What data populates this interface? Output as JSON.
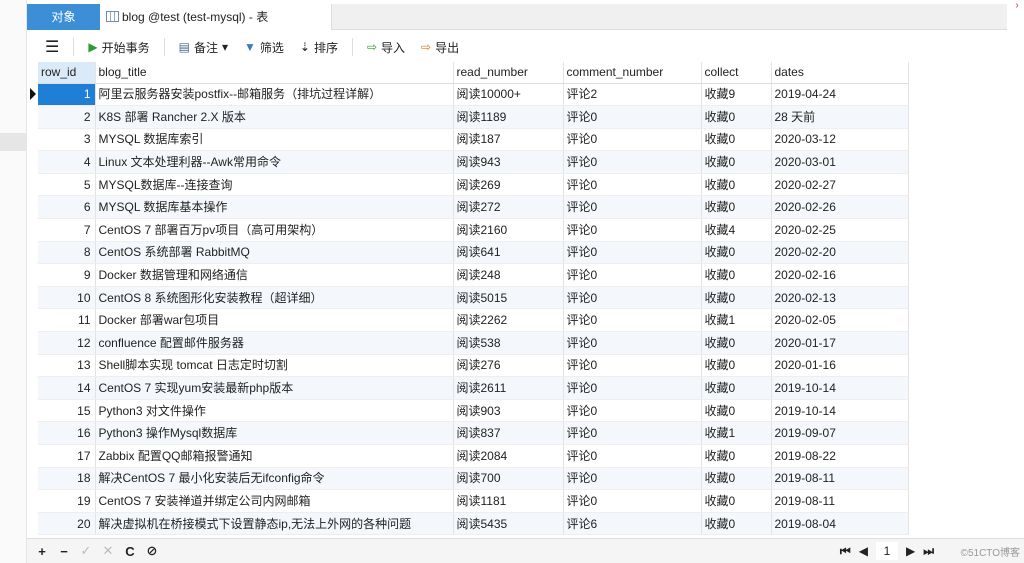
{
  "tabs": {
    "objects": "对象",
    "active": "blog @test (test-mysql) - 表"
  },
  "toolbar": {
    "begin_transaction": "开始事务",
    "notes": "备注",
    "filter": "筛选",
    "sort": "排序",
    "import": "导入",
    "export": "导出"
  },
  "columns": [
    "row_id",
    "blog_title",
    "read_number",
    "comment_number",
    "collect",
    "dates"
  ],
  "rows": [
    [
      "1",
      "阿里云服务器安装postfix--邮箱服务（排坑过程详解）",
      "阅读10000+",
      "评论2",
      "收藏9",
      "2019-04-24"
    ],
    [
      "2",
      "K8S 部署 Rancher 2.X 版本",
      "阅读1189",
      "评论0",
      "收藏0",
      "28 天前"
    ],
    [
      "3",
      "MYSQL 数据库索引",
      "阅读187",
      "评论0",
      "收藏0",
      "2020-03-12"
    ],
    [
      "4",
      "Linux 文本处理利器--Awk常用命令",
      "阅读943",
      "评论0",
      "收藏0",
      "2020-03-01"
    ],
    [
      "5",
      "MYSQL数据库--连接查询",
      "阅读269",
      "评论0",
      "收藏0",
      "2020-02-27"
    ],
    [
      "6",
      "MYSQL 数据库基本操作",
      "阅读272",
      "评论0",
      "收藏0",
      "2020-02-26"
    ],
    [
      "7",
      "CentOS 7 部署百万pv项目（高可用架构）",
      "阅读2160",
      "评论0",
      "收藏4",
      "2020-02-25"
    ],
    [
      "8",
      "CentOS 系统部署 RabbitMQ",
      "阅读641",
      "评论0",
      "收藏0",
      "2020-02-20"
    ],
    [
      "9",
      "Docker 数据管理和网络通信",
      "阅读248",
      "评论0",
      "收藏0",
      "2020-02-16"
    ],
    [
      "10",
      "CentOS 8 系统图形化安装教程（超详细）",
      "阅读5015",
      "评论0",
      "收藏0",
      "2020-02-13"
    ],
    [
      "11",
      "Docker 部署war包项目",
      "阅读2262",
      "评论0",
      "收藏1",
      "2020-02-05"
    ],
    [
      "12",
      "confluence 配置邮件服务器",
      "阅读538",
      "评论0",
      "收藏0",
      "2020-01-17"
    ],
    [
      "13",
      "Shell脚本实现 tomcat 日志定时切割",
      "阅读276",
      "评论0",
      "收藏0",
      "2020-01-16"
    ],
    [
      "14",
      "CentOS 7 实现yum安装最新php版本",
      "阅读2611",
      "评论0",
      "收藏0",
      "2019-10-14"
    ],
    [
      "15",
      "Python3 对文件操作",
      "阅读903",
      "评论0",
      "收藏0",
      "2019-10-14"
    ],
    [
      "16",
      "Python3 操作Mysql数据库",
      "阅读837",
      "评论0",
      "收藏1",
      "2019-09-07"
    ],
    [
      "17",
      "Zabbix 配置QQ邮箱报警通知",
      "阅读2084",
      "评论0",
      "收藏0",
      "2019-08-22"
    ],
    [
      "18",
      "解决CentOS 7 最小化安装后无ifconfig命令",
      "阅读700",
      "评论0",
      "收藏0",
      "2019-08-11"
    ],
    [
      "19",
      "CentOS 7 安装禅道并绑定公司内网邮箱",
      "阅读1181",
      "评论0",
      "收藏0",
      "2019-08-11"
    ],
    [
      "20",
      "解决虚拟机在桥接模式下设置静态ip,无法上外网的各种问题",
      "阅读5435",
      "评论6",
      "收藏0",
      "2019-08-04"
    ]
  ],
  "footer": {
    "add": "+",
    "delete": "−",
    "apply": "✓",
    "discard": "✕",
    "refresh": "C",
    "stop": "⊘",
    "page": "1"
  },
  "watermark": "©51CTO博客",
  "colors": {
    "accent": "#3c8fd6",
    "selected_cell": "#1f7fd6"
  }
}
